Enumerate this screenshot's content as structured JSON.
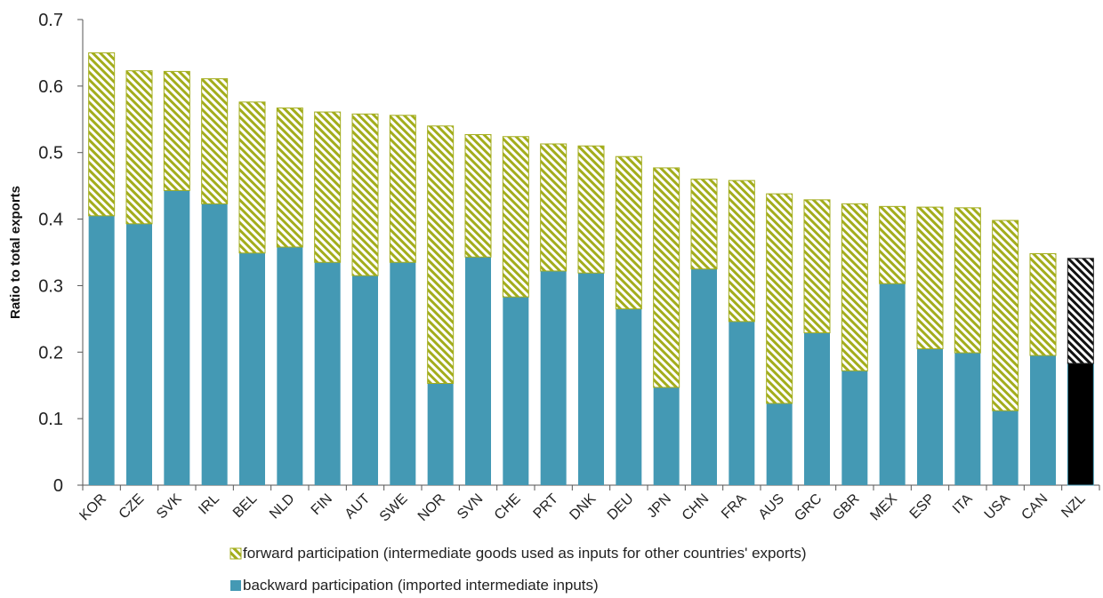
{
  "chart_data": {
    "type": "bar",
    "stacked": true,
    "ylabel": "Ratio to total exports",
    "ylim": [
      0,
      0.7
    ],
    "yticks": [
      "0",
      "0.1",
      "0.2",
      "0.3",
      "0.4",
      "0.5",
      "0.6",
      "0.7"
    ],
    "grid": false,
    "legend_position": "bottom",
    "categories": [
      "KOR",
      "CZE",
      "SVK",
      "IRL",
      "BEL",
      "NLD",
      "FIN",
      "AUT",
      "SWE",
      "NOR",
      "SVN",
      "CHE",
      "PRT",
      "DNK",
      "DEU",
      "JPN",
      "CHN",
      "FRA",
      "AUS",
      "GRC",
      "GBR",
      "MEX",
      "ESP",
      "ITA",
      "USA",
      "CAN",
      "NZL"
    ],
    "series": [
      {
        "name": "backward participation (imported intermediate inputs)",
        "color": "#4499b4",
        "values": [
          0.405,
          0.393,
          0.443,
          0.423,
          0.349,
          0.358,
          0.335,
          0.315,
          0.335,
          0.153,
          0.343,
          0.283,
          0.322,
          0.319,
          0.265,
          0.147,
          0.325,
          0.246,
          0.123,
          0.229,
          0.172,
          0.303,
          0.205,
          0.199,
          0.112,
          0.195,
          0.183
        ]
      },
      {
        "name": "forward participation (intermediate goods used as inputs for other countries' exports)",
        "color": "#a3ad1c",
        "pattern": "diagonal-hatch",
        "values": [
          0.245,
          0.23,
          0.179,
          0.188,
          0.227,
          0.209,
          0.226,
          0.243,
          0.221,
          0.387,
          0.184,
          0.241,
          0.191,
          0.191,
          0.229,
          0.33,
          0.135,
          0.212,
          0.315,
          0.2,
          0.251,
          0.116,
          0.213,
          0.218,
          0.286,
          0.153,
          0.158
        ]
      }
    ],
    "highlight": {
      "category": "NZL",
      "backward_color": "#000000",
      "forward_color": "#222222"
    }
  }
}
